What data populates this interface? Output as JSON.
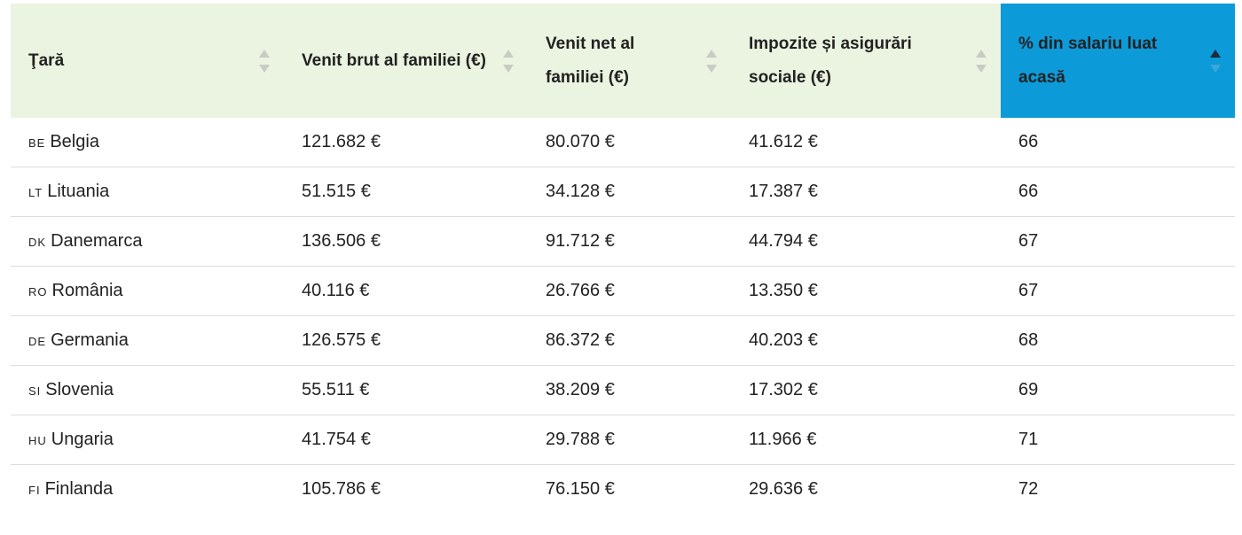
{
  "table": {
    "headers": [
      "Ţară",
      "Venit brut al familiei (€)",
      "Venit net al familiei (€)",
      "Impozite și asigurări sociale (€)",
      "% din salariu luat acasă"
    ],
    "rows": [
      {
        "code": "BE",
        "country": "Belgia",
        "cells": [
          "121.682 €",
          "80.070 €",
          "41.612 €",
          "66"
        ]
      },
      {
        "code": "LT",
        "country": "Lituania",
        "cells": [
          "51.515 €",
          "34.128 €",
          "17.387 €",
          "66"
        ]
      },
      {
        "code": "DK",
        "country": "Danemarca",
        "cells": [
          "136.506 €",
          "91.712 €",
          "44.794 €",
          "67"
        ]
      },
      {
        "code": "RO",
        "country": "România",
        "cells": [
          "40.116 €",
          "26.766 €",
          "13.350 €",
          "67"
        ]
      },
      {
        "code": "DE",
        "country": "Germania",
        "cells": [
          "126.575 €",
          "86.372 €",
          "40.203 €",
          "68"
        ]
      },
      {
        "code": "SI",
        "country": "Slovenia",
        "cells": [
          "55.511 €",
          "38.209 €",
          "17.302 €",
          "69"
        ]
      },
      {
        "code": "HU",
        "country": "Ungaria",
        "cells": [
          "41.754 €",
          "29.788 €",
          "11.966 €",
          "71"
        ]
      },
      {
        "code": "FI",
        "country": "Finlanda",
        "cells": [
          "105.786 €",
          "76.150 €",
          "29.636 €",
          "72"
        ]
      }
    ]
  }
}
